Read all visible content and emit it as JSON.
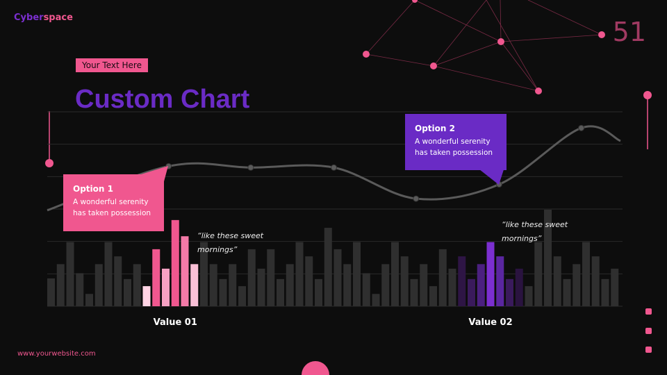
{
  "brand": {
    "part1": "Cyber",
    "part2": "space"
  },
  "page_number": "51",
  "tag": "Your Text Here",
  "title": "Custom Chart",
  "callouts": [
    {
      "title": "Option 1",
      "text": "A wonderful serenity has taken possession"
    },
    {
      "title": "Option 2",
      "text": "A wonderful serenity has taken possession"
    }
  ],
  "quotes": [
    "“like these sweet mornings”",
    "“like these sweet mornings”"
  ],
  "footer": "www.yourwebsite.com",
  "chart_data": {
    "type": "bar",
    "grid": true,
    "ylim": [
      0,
      300
    ],
    "yticks": [
      0,
      50,
      100,
      150,
      200,
      250,
      300
    ],
    "xlim": [
      0,
      60
    ],
    "categories": [
      null,
      null,
      null,
      null,
      null,
      null,
      null,
      null,
      null,
      null,
      null,
      null,
      null,
      "Value 01",
      null,
      null,
      null,
      null,
      null,
      null,
      null,
      null,
      null,
      null,
      null,
      null,
      null,
      null,
      null,
      null,
      null,
      null,
      null,
      null,
      null,
      null,
      null,
      null,
      null,
      null,
      null,
      null,
      null,
      null,
      null,
      null,
      "Value 02",
      null,
      null,
      null,
      null,
      null,
      null,
      null,
      null,
      null,
      null,
      null,
      null,
      null
    ],
    "values": [
      43,
      65,
      99,
      51,
      19,
      65,
      99,
      77,
      42,
      65,
      31,
      88,
      58,
      133,
      108,
      65,
      99,
      65,
      42,
      65,
      31,
      88,
      58,
      88,
      42,
      65,
      99,
      77,
      42,
      121,
      88,
      65,
      99,
      51,
      19,
      65,
      99,
      77,
      42,
      65,
      31,
      88,
      58,
      77,
      42,
      65,
      99,
      77,
      42,
      58,
      31,
      99,
      149,
      77,
      42,
      65,
      99,
      77,
      42,
      58
    ],
    "colors": [
      "#2f2f2f",
      "#2f2f2f",
      "#2f2f2f",
      "#2f2f2f",
      "#2f2f2f",
      "#2f2f2f",
      "#2f2f2f",
      "#2f2f2f",
      "#2f2f2f",
      "#2f2f2f",
      "#ffd3e4",
      "#f0578f",
      "#f7a1c3",
      "#f0578f",
      "#f47aa8",
      "#f9c0d6",
      "#2f2f2f",
      "#2f2f2f",
      "#2f2f2f",
      "#2f2f2f",
      "#2f2f2f",
      "#2f2f2f",
      "#2f2f2f",
      "#2f2f2f",
      "#2f2f2f",
      "#2f2f2f",
      "#2f2f2f",
      "#2f2f2f",
      "#2f2f2f",
      "#2f2f2f",
      "#2f2f2f",
      "#2f2f2f",
      "#2f2f2f",
      "#2f2f2f",
      "#2f2f2f",
      "#2f2f2f",
      "#2f2f2f",
      "#2f2f2f",
      "#2f2f2f",
      "#2f2f2f",
      "#2f2f2f",
      "#2f2f2f",
      "#2f2f2f",
      "#2e1545",
      "#3a1a5c",
      "#4b2080",
      "#7b2fd0",
      "#5a26a0",
      "#3a1a5c",
      "#2a133f",
      "#2f2f2f",
      "#2f2f2f",
      "#2f2f2f",
      "#2f2f2f",
      "#2f2f2f",
      "#2f2f2f",
      "#2f2f2f",
      "#2f2f2f",
      "#2f2f2f",
      "#2f2f2f"
    ],
    "line": {
      "color": "#5a5a5a",
      "x": [
        0,
        12.7,
        21.3,
        30,
        38.6,
        47.3,
        55.9,
        60
      ],
      "values": [
        148,
        216,
        214,
        214,
        166,
        188,
        275,
        255
      ]
    }
  }
}
